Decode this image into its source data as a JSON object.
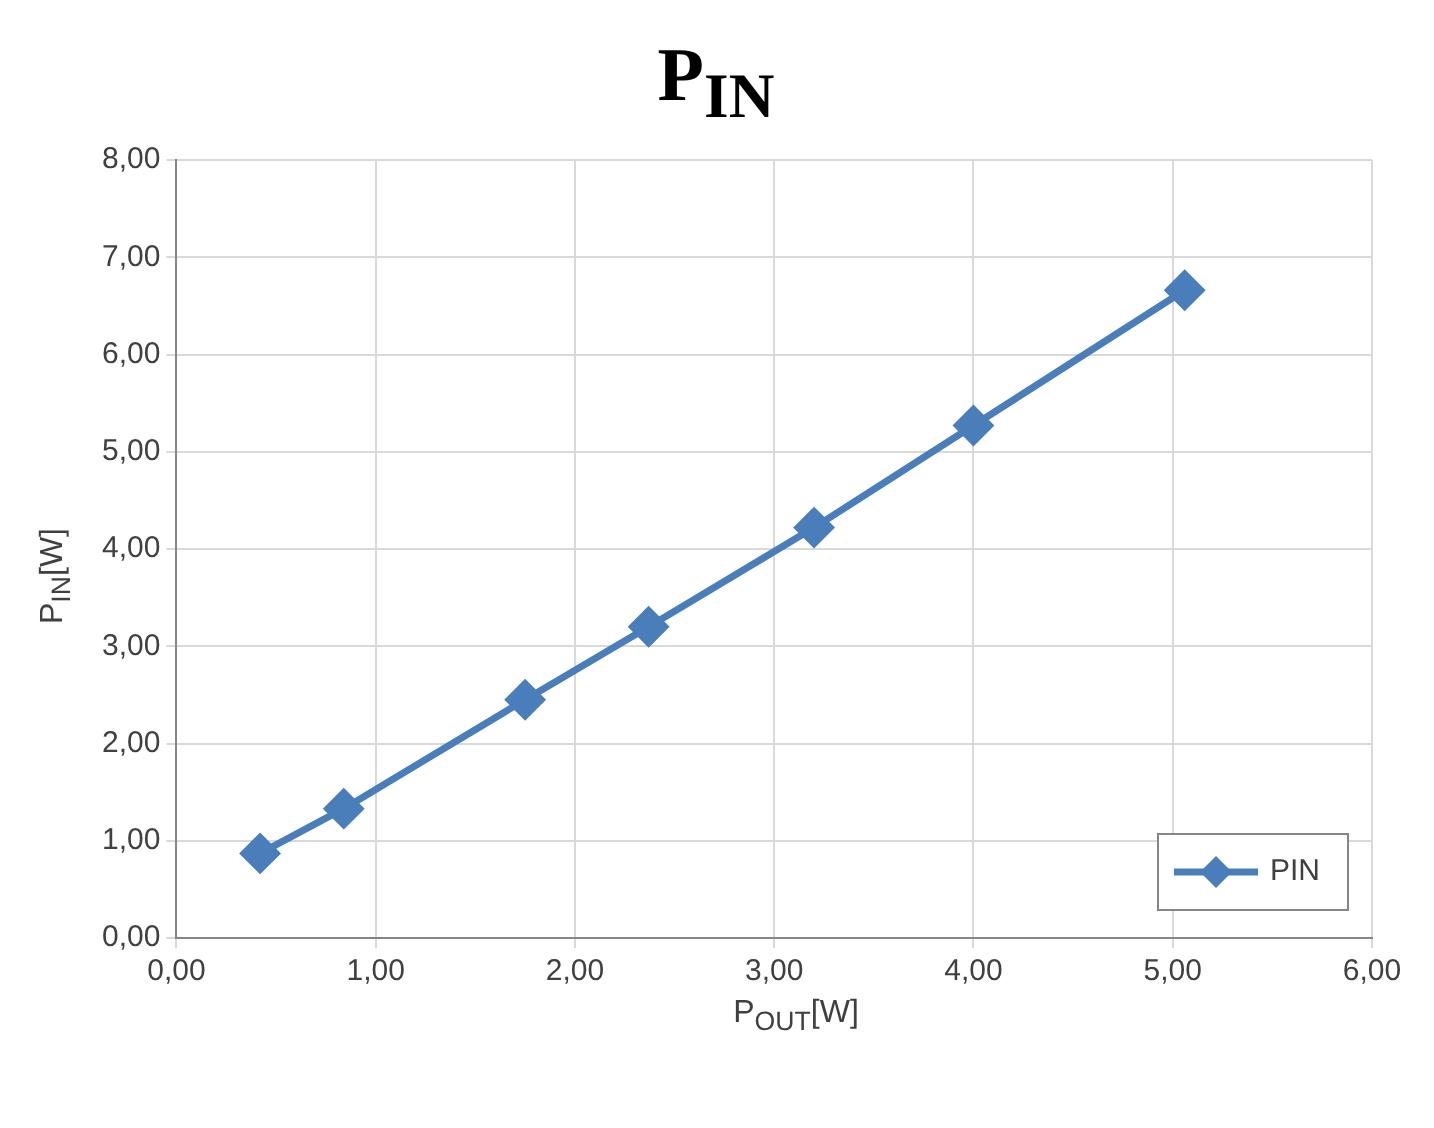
{
  "chart_data": {
    "type": "line",
    "title": "P$_{IN}$",
    "xlabel": "P$_{OUT}$[W]",
    "ylabel": "P$_{IN}$[W]",
    "x": [
      0.42,
      0.84,
      1.75,
      2.37,
      3.2,
      4.0,
      5.06
    ],
    "series": [
      {
        "name": "PIN",
        "color": "#4a7ebb",
        "values": [
          0.87,
          1.33,
          2.45,
          3.2,
          4.22,
          5.27,
          6.66
        ]
      }
    ],
    "xlim": [
      0,
      6
    ],
    "ylim": [
      0,
      8
    ],
    "xticks": [
      {
        "value": 0,
        "label": "0,00"
      },
      {
        "value": 1,
        "label": "1,00"
      },
      {
        "value": 2,
        "label": "2,00"
      },
      {
        "value": 3,
        "label": "3,00"
      },
      {
        "value": 4,
        "label": "4,00"
      },
      {
        "value": 5,
        "label": "5,00"
      },
      {
        "value": 6,
        "label": "6,00"
      }
    ],
    "yticks": [
      {
        "value": 0,
        "label": "0,00"
      },
      {
        "value": 1,
        "label": "1,00"
      },
      {
        "value": 2,
        "label": "2,00"
      },
      {
        "value": 3,
        "label": "3,00"
      },
      {
        "value": 4,
        "label": "4,00"
      },
      {
        "value": 5,
        "label": "5,00"
      },
      {
        "value": 6,
        "label": "6,00"
      },
      {
        "value": 7,
        "label": "7,00"
      },
      {
        "value": 8,
        "label": "8,00"
      }
    ],
    "grid": true,
    "legend": "bottom right",
    "marker": "diamond",
    "line_style": "solid"
  }
}
